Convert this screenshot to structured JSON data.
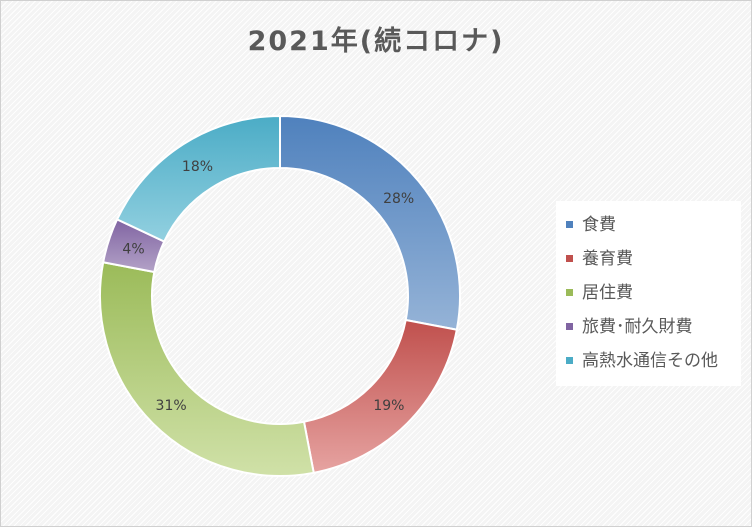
{
  "chart_data": {
    "type": "pie",
    "title": "2021年(続コロナ)",
    "categories": [
      "食費",
      "養育費",
      "居住費",
      "旅費･耐久財費",
      "高熱水通信その他"
    ],
    "values": [
      28,
      19,
      31,
      4,
      18
    ],
    "data_labels": [
      "28%",
      "19%",
      "31%",
      "4%",
      "18%"
    ],
    "colors": [
      "#4f81bd",
      "#c0504d",
      "#9bbb59",
      "#8064a2",
      "#4bacc6"
    ],
    "light_colors": [
      "#95b3d7",
      "#e6a3a1",
      "#d0e1a8",
      "#b3a2c7",
      "#92d0e0"
    ],
    "donut": true,
    "legend_position": "right"
  }
}
